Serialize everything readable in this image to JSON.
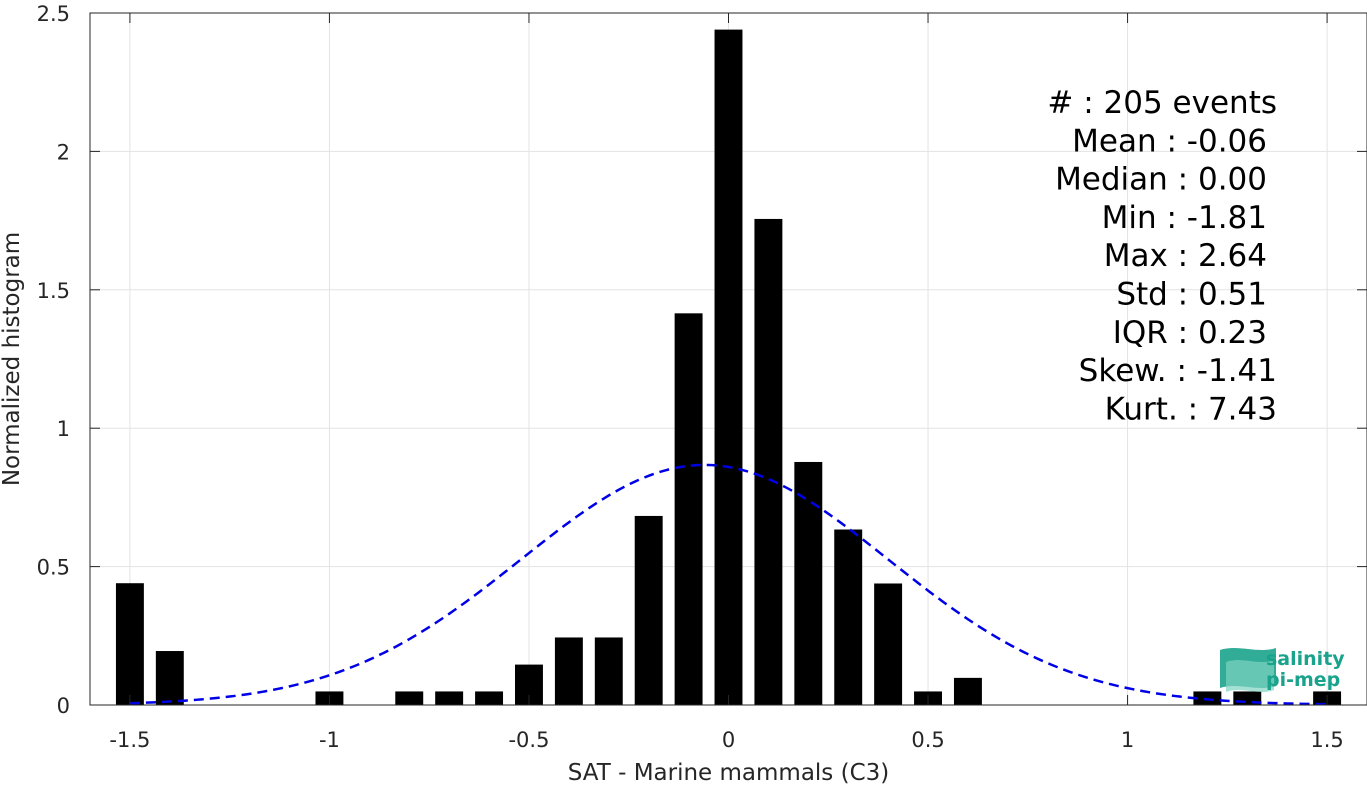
{
  "chart_data": {
    "type": "bar",
    "xlabel": "SAT - Marine mammals (C3)",
    "ylabel": "Normalized histogram",
    "xlim": [
      -1.6,
      1.6
    ],
    "ylim": [
      0,
      2.5
    ],
    "xticks": [
      -1.5,
      -1,
      -0.5,
      0,
      0.5,
      1,
      1.5
    ],
    "xtick_labels": [
      "-1.5",
      "-1",
      "-0.5",
      "0",
      "0.5",
      "1",
      "1.5"
    ],
    "yticks": [
      0,
      0.5,
      1,
      1.5,
      2,
      2.5
    ],
    "ytick_labels": [
      "0",
      "0.5",
      "1",
      "1.5",
      "2",
      "2.5"
    ],
    "grid": true,
    "bin_width": 0.1,
    "bars": [
      {
        "x": -1.5,
        "y": 0.44
      },
      {
        "x": -1.4,
        "y": 0.195
      },
      {
        "x": -1.0,
        "y": 0.049
      },
      {
        "x": -0.8,
        "y": 0.049
      },
      {
        "x": -0.7,
        "y": 0.049
      },
      {
        "x": -0.6,
        "y": 0.049
      },
      {
        "x": -0.5,
        "y": 0.146
      },
      {
        "x": -0.4,
        "y": 0.244
      },
      {
        "x": -0.3,
        "y": 0.244
      },
      {
        "x": -0.2,
        "y": 0.683
      },
      {
        "x": -0.1,
        "y": 1.415
      },
      {
        "x": 0.0,
        "y": 2.44
      },
      {
        "x": 0.1,
        "y": 1.756
      },
      {
        "x": 0.2,
        "y": 0.878
      },
      {
        "x": 0.3,
        "y": 0.634
      },
      {
        "x": 0.4,
        "y": 0.439
      },
      {
        "x": 0.5,
        "y": 0.049
      },
      {
        "x": 0.6,
        "y": 0.098
      },
      {
        "x": 1.2,
        "y": 0.049
      },
      {
        "x": 1.3,
        "y": 0.049
      },
      {
        "x": 1.5,
        "y": 0.049
      }
    ],
    "fit_curve": {
      "type": "gaussian",
      "mean": -0.06,
      "std": 0.46,
      "style": "dashed",
      "color": "#0000e6"
    },
    "bar_color": "#000000",
    "stats": [
      {
        "label": "#  : 205 events"
      },
      {
        "label": "Mean : -0.06"
      },
      {
        "label": "Median : 0.00"
      },
      {
        "label": "Min : -1.81"
      },
      {
        "label": "Max : 2.64"
      },
      {
        "label": "Std : 0.51"
      },
      {
        "label": "IQR : 0.23"
      },
      {
        "label": "Skew. : -1.41"
      },
      {
        "label": "Kurt. : 7.43"
      }
    ]
  },
  "logo": {
    "line1": "salinity",
    "line2": "pi-mep",
    "color": "#1aa38c"
  }
}
